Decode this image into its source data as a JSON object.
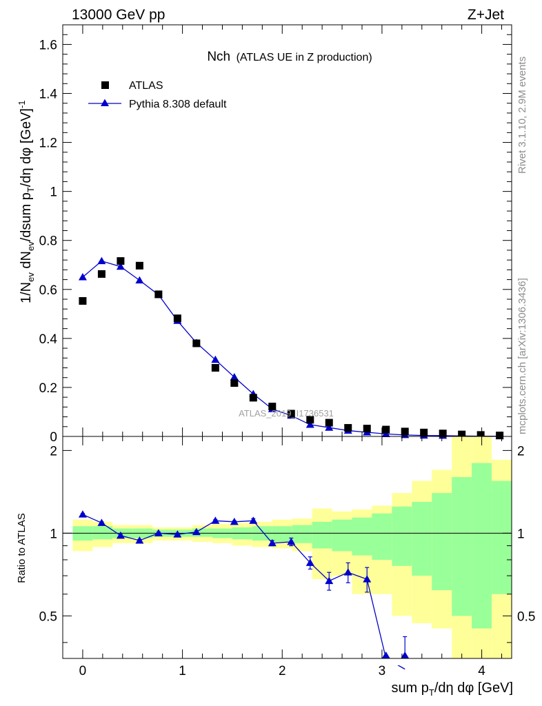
{
  "header": {
    "energy_label": "13000 GeV pp",
    "process_label": "Z+Jet"
  },
  "side": {
    "rivet_label": "Rivet 3.1.10,  2.9M events",
    "source_label": "mcplots.cern.ch [arXiv:1306.3436]"
  },
  "colors": {
    "data": "#000000",
    "mc": "#0000cc",
    "band_inner": "#99ff99",
    "band_outer": "#ffff99"
  },
  "chart_data": [
    {
      "type": "scatter",
      "title": "Nch",
      "subtitle": "(ATLAS UE in Z production)",
      "watermark": "ATLAS_2019_I1736531",
      "xlabel": "sum p_T/dη dφ [GeV]",
      "ylabel": "1/N_ev dN_ev/dsum p_T/dη dφ [GeV]^-1",
      "xlim": [
        -0.2,
        4.3
      ],
      "ylim": [
        0,
        1.68
      ],
      "yticks": [
        0,
        0.2,
        0.4,
        0.6,
        0.8,
        1,
        1.2,
        1.4,
        1.6
      ],
      "ytick_labels": [
        "0",
        "0.2",
        "0.4",
        "0.6",
        "0.8",
        "1",
        "1.2",
        "1.4",
        "1.6"
      ],
      "legend_position": "top-left",
      "series": [
        {
          "name": "ATLAS",
          "style": "square-markers",
          "x": [
            0,
            0.19,
            0.38,
            0.57,
            0.76,
            0.95,
            1.14,
            1.33,
            1.52,
            1.71,
            1.9,
            2.09,
            2.28,
            2.47,
            2.66,
            2.85,
            3.04,
            3.23,
            3.42,
            3.61,
            3.8,
            3.99,
            4.18
          ],
          "y": [
            0.553,
            0.663,
            0.716,
            0.697,
            0.58,
            0.482,
            0.38,
            0.28,
            0.218,
            0.158,
            0.122,
            0.093,
            0.068,
            0.056,
            0.035,
            0.032,
            0.028,
            0.02,
            0.016,
            0.012,
            0.008,
            0.006,
            0.004
          ]
        },
        {
          "name": "Pythia 8.308 default",
          "style": "line-triangle-markers",
          "x": [
            0,
            0.19,
            0.38,
            0.57,
            0.76,
            0.95,
            1.14,
            1.33,
            1.52,
            1.71,
            1.9,
            2.09,
            2.28,
            2.47,
            2.66,
            2.85,
            3.04,
            3.23,
            3.42,
            3.61,
            3.8,
            3.99,
            4.18
          ],
          "y": [
            0.65,
            0.716,
            0.693,
            0.637,
            0.578,
            0.472,
            0.382,
            0.313,
            0.242,
            0.173,
            0.112,
            0.085,
            0.048,
            0.036,
            0.024,
            0.017,
            0.01,
            0.006,
            0.004,
            0.003,
            0.002,
            0.001,
            0.001
          ]
        }
      ]
    },
    {
      "type": "line",
      "ylabel": "Ratio to ATLAS",
      "xlabel": "sum p_T/dη dφ [GeV]",
      "xlim": [
        -0.2,
        4.3
      ],
      "ylim": [
        0.35,
        2.25
      ],
      "yticks": [
        0.5,
        1,
        2
      ],
      "ytick_labels": [
        "0.5",
        "1",
        "2"
      ],
      "xticks": [
        0,
        1,
        2,
        3,
        4
      ],
      "xtick_labels": [
        "0",
        "1",
        "2",
        "3",
        "4"
      ],
      "bins": [
        {
          "lo": -0.1,
          "hi": 0.1,
          "in": [
            0.94,
            1.06
          ],
          "out": [
            0.86,
            1.12
          ]
        },
        {
          "lo": 0.1,
          "hi": 0.3,
          "in": [
            0.95,
            1.06
          ],
          "out": [
            0.89,
            1.1
          ]
        },
        {
          "lo": 0.3,
          "hi": 0.5,
          "in": [
            0.96,
            1.04
          ],
          "out": [
            0.92,
            1.07
          ]
        },
        {
          "lo": 0.5,
          "hi": 0.7,
          "in": [
            0.96,
            1.04
          ],
          "out": [
            0.92,
            1.07
          ]
        },
        {
          "lo": 0.7,
          "hi": 0.9,
          "in": [
            0.97,
            1.03
          ],
          "out": [
            0.94,
            1.05
          ]
        },
        {
          "lo": 0.9,
          "hi": 1.1,
          "in": [
            0.97,
            1.03
          ],
          "out": [
            0.94,
            1.05
          ]
        },
        {
          "lo": 1.1,
          "hi": 1.3,
          "in": [
            0.97,
            1.04
          ],
          "out": [
            0.93,
            1.07
          ]
        },
        {
          "lo": 1.3,
          "hi": 1.5,
          "in": [
            0.96,
            1.04
          ],
          "out": [
            0.92,
            1.08
          ]
        },
        {
          "lo": 1.5,
          "hi": 1.7,
          "in": [
            0.95,
            1.05
          ],
          "out": [
            0.9,
            1.09
          ]
        },
        {
          "lo": 1.7,
          "hi": 1.9,
          "in": [
            0.94,
            1.06
          ],
          "out": [
            0.89,
            1.1
          ]
        },
        {
          "lo": 1.9,
          "hi": 2.1,
          "in": [
            0.93,
            1.06
          ],
          "out": [
            0.88,
            1.12
          ]
        },
        {
          "lo": 2.1,
          "hi": 2.3,
          "in": [
            0.92,
            1.07
          ],
          "out": [
            0.86,
            1.13
          ]
        },
        {
          "lo": 2.3,
          "hi": 2.5,
          "in": [
            0.88,
            1.1
          ],
          "out": [
            0.68,
            1.23
          ]
        },
        {
          "lo": 2.5,
          "hi": 2.7,
          "in": [
            0.86,
            1.12
          ],
          "out": [
            0.7,
            1.2
          ]
        },
        {
          "lo": 2.7,
          "hi": 2.9,
          "in": [
            0.83,
            1.14
          ],
          "out": [
            0.6,
            1.22
          ]
        },
        {
          "lo": 2.9,
          "hi": 3.1,
          "in": [
            0.8,
            1.18
          ],
          "out": [
            0.6,
            1.26
          ]
        },
        {
          "lo": 3.1,
          "hi": 3.3,
          "in": [
            0.76,
            1.25
          ],
          "out": [
            0.5,
            1.4
          ]
        },
        {
          "lo": 3.3,
          "hi": 3.5,
          "in": [
            0.7,
            1.3
          ],
          "out": [
            0.47,
            1.55
          ]
        },
        {
          "lo": 3.5,
          "hi": 3.7,
          "in": [
            0.62,
            1.4
          ],
          "out": [
            0.45,
            1.7
          ]
        },
        {
          "lo": 3.7,
          "hi": 3.9,
          "in": [
            0.5,
            1.6
          ],
          "out": [
            0.35,
            2.25
          ]
        },
        {
          "lo": 3.9,
          "hi": 4.1,
          "in": [
            0.45,
            1.8
          ],
          "out": [
            0.35,
            2.25
          ]
        },
        {
          "lo": 4.1,
          "hi": 4.3,
          "in": [
            0.6,
            1.55
          ],
          "out": [
            0.35,
            1.85
          ]
        }
      ],
      "series": [
        {
          "name": "Pythia 8.308 default",
          "x": [
            0,
            0.19,
            0.38,
            0.57,
            0.76,
            0.95,
            1.14,
            1.33,
            1.52,
            1.71,
            1.9,
            2.09,
            2.28,
            2.47,
            2.66,
            2.85,
            3.04,
            3.23
          ],
          "y": [
            1.17,
            1.09,
            0.98,
            0.94,
            1.0,
            0.99,
            1.01,
            1.11,
            1.1,
            1.11,
            0.92,
            0.93,
            0.78,
            0.67,
            0.72,
            0.68,
            0.35,
            0.32
          ],
          "err": [
            0.01,
            0.01,
            0.01,
            0.01,
            0.01,
            0.01,
            0.01,
            0.01,
            0.01,
            0.02,
            0.02,
            0.03,
            0.04,
            0.05,
            0.06,
            0.07,
            0,
            0.1
          ]
        }
      ]
    }
  ]
}
